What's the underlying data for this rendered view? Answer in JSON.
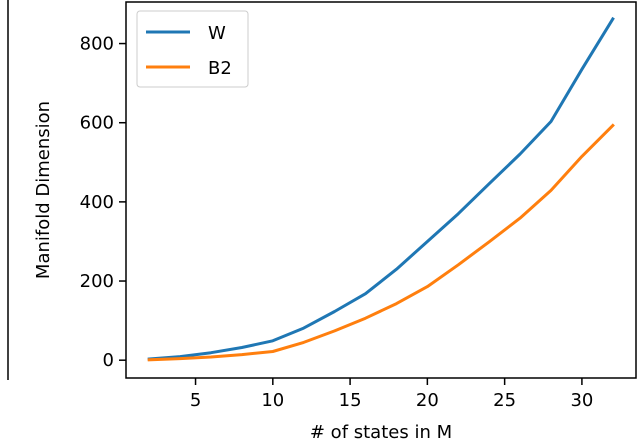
{
  "chart_data": {
    "type": "line",
    "xlabel": "# of states in M",
    "ylabel": "Manifold Dimension",
    "xlim": [
      0.5,
      33.5
    ],
    "ylim": [
      -45,
      905
    ],
    "xticks": [
      5,
      10,
      15,
      20,
      25,
      30
    ],
    "yticks": [
      0,
      200,
      400,
      600,
      800
    ],
    "x": [
      2,
      4,
      6,
      8,
      10,
      12,
      14,
      16,
      18,
      20,
      22,
      24,
      26,
      28,
      30,
      32
    ],
    "grid": false,
    "legend": "top-left",
    "series": [
      {
        "name": "W",
        "color": "#1f77b4",
        "values": [
          3,
          9,
          19,
          32,
          49,
          81,
          123,
          168,
          230,
          300,
          370,
          446,
          521,
          603,
          735,
          862
        ]
      },
      {
        "name": "B2",
        "color": "#ff7f0e",
        "values": [
          1,
          4,
          8,
          14,
          22,
          45,
          74,
          106,
          143,
          186,
          241,
          299,
          359,
          429,
          515,
          593
        ]
      }
    ]
  }
}
